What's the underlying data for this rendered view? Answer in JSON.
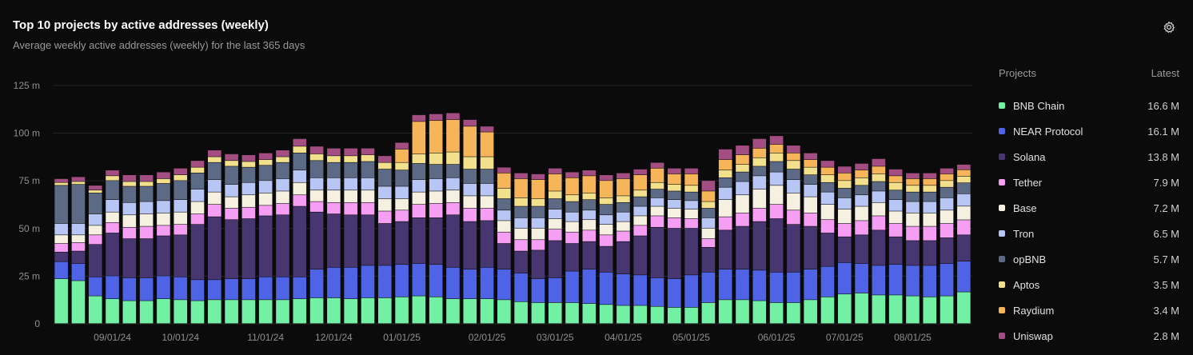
{
  "header": {
    "title": "Top 10 projects by active addresses (weekly)",
    "subtitle": "Average weekly active addresses (weekly) for the last 365 days"
  },
  "legend": {
    "heading_projects": "Projects",
    "heading_latest": "Latest"
  },
  "icons": {
    "settings": "gear-icon"
  },
  "chart_data": {
    "type": "bar",
    "stacked": true,
    "ylabel": "",
    "xlabel": "",
    "ylim": [
      0,
      130
    ],
    "y_ticks": [
      0,
      25,
      50,
      75,
      100,
      125
    ],
    "y_tick_labels": [
      "0",
      "25 m",
      "50 m",
      "75 m",
      "100 m",
      "125 m"
    ],
    "x_tick_labels": [
      {
        "label": "09/01/24",
        "index": 3
      },
      {
        "label": "10/01/24",
        "index": 7
      },
      {
        "label": "11/01/24",
        "index": 12
      },
      {
        "label": "12/01/24",
        "index": 16
      },
      {
        "label": "01/01/25",
        "index": 20
      },
      {
        "label": "02/01/25",
        "index": 25
      },
      {
        "label": "03/01/25",
        "index": 29
      },
      {
        "label": "04/01/25",
        "index": 33
      },
      {
        "label": "05/01/25",
        "index": 37
      },
      {
        "label": "06/01/25",
        "index": 42
      },
      {
        "label": "07/01/25",
        "index": 46
      },
      {
        "label": "08/01/25",
        "index": 50
      }
    ],
    "grid": true,
    "legend_position": "right",
    "series": [
      {
        "name": "BNB Chain",
        "latest": "16.6 M",
        "color": "#72f0a4",
        "values": [
          23.5,
          22.5,
          14.5,
          13,
          12,
          12,
          13,
          12.5,
          12,
          12.5,
          12.5,
          12.5,
          12.5,
          12.5,
          13,
          13.5,
          13.5,
          13,
          13.5,
          13.5,
          14,
          14.5,
          14,
          13,
          13,
          13,
          12.5,
          11.5,
          11,
          11,
          11,
          10.5,
          10,
          9.5,
          9.5,
          9,
          8.5,
          8.5,
          11,
          12.5,
          12.5,
          12,
          11,
          11,
          12.5,
          14,
          15.5,
          16,
          15,
          15,
          14.5,
          14,
          14.5,
          16.6
        ]
      },
      {
        "name": "NEAR Protocol",
        "latest": "16.1 M",
        "color": "#4f63e6",
        "values": [
          9,
          9,
          10,
          12,
          12,
          12,
          12,
          12,
          11,
          10.5,
          11,
          11,
          12,
          12,
          11.5,
          15,
          16,
          16.5,
          17,
          17,
          17,
          17,
          17,
          16.5,
          15.5,
          16.5,
          16,
          15,
          12.5,
          13,
          16.5,
          18,
          17,
          16.5,
          16,
          15,
          15,
          17,
          16,
          16,
          16,
          16,
          16,
          16,
          16,
          16,
          16.5,
          15.5,
          15.5,
          16,
          16,
          16.5,
          17,
          16.1
        ]
      },
      {
        "name": "Solana",
        "latest": "13.8 M",
        "color": "#47366f",
        "values": [
          5,
          6.5,
          17,
          22.5,
          20.5,
          20.5,
          21,
          22,
          29,
          33,
          31,
          31.5,
          32,
          32.5,
          37,
          30,
          28,
          27.5,
          26.5,
          22,
          22.5,
          24,
          24.5,
          27.5,
          25,
          24.5,
          13.5,
          11.5,
          15,
          19.5,
          14.5,
          14.5,
          13.5,
          17,
          20.5,
          26.5,
          26.5,
          24.5,
          13,
          20.5,
          22.5,
          25.5,
          28,
          25,
          22.5,
          17.5,
          13.5,
          15,
          18.5,
          14.5,
          13,
          13,
          13.5,
          13.8
        ]
      },
      {
        "name": "Tether",
        "latest": "7.9 M",
        "color": "#f59ef3",
        "values": [
          4.5,
          4.5,
          5,
          5.5,
          6,
          6.5,
          5.5,
          5.5,
          5.5,
          6.5,
          6,
          6,
          5.5,
          6,
          6,
          5.5,
          6,
          6.5,
          6.5,
          6.5,
          6,
          7,
          7.5,
          6.5,
          7,
          6.5,
          6,
          6,
          5.5,
          6,
          6,
          6,
          6,
          5.5,
          5.5,
          6,
          5.5,
          5,
          4.5,
          7,
          7,
          7,
          7.5,
          7.5,
          7,
          7,
          7,
          7.5,
          7.5,
          7,
          7.5,
          7.5,
          7.5,
          7.9
        ]
      },
      {
        "name": "Base",
        "latest": "7.2 M",
        "color": "#f5f0df",
        "values": [
          4.5,
          4,
          5,
          5.5,
          6.5,
          6.5,
          6.5,
          6.5,
          6.5,
          6.5,
          6,
          6.5,
          6.5,
          6.5,
          6.5,
          6,
          6.5,
          6.5,
          6.5,
          6.5,
          6,
          6.5,
          6.5,
          6.5,
          6.5,
          6.5,
          6,
          6,
          6,
          5.5,
          5.5,
          5.5,
          5.5,
          5,
          5,
          5,
          5,
          5,
          5.5,
          9,
          9.5,
          10,
          10,
          9,
          8.5,
          8,
          7.5,
          7.5,
          7,
          6.5,
          7,
          7,
          7,
          7.2
        ]
      },
      {
        "name": "Tron",
        "latest": "6.5 M",
        "color": "#b8c6f5",
        "values": [
          6,
          6,
          6,
          6.5,
          6.5,
          6.5,
          6.5,
          6.5,
          6.5,
          6.5,
          6.5,
          6.5,
          6.5,
          6.5,
          6.5,
          6.5,
          6.5,
          6.5,
          6.5,
          6.5,
          6.5,
          6.5,
          6.5,
          6.5,
          6.5,
          6.5,
          5.5,
          5.5,
          5.5,
          5,
          5,
          5,
          5,
          5,
          5,
          4.5,
          4.5,
          4.5,
          5.5,
          6.5,
          7,
          7,
          7,
          7,
          6.5,
          6.5,
          6,
          6,
          6,
          6,
          6,
          6,
          6.5,
          6.5
        ]
      },
      {
        "name": "opBNB",
        "latest": "5.7 M",
        "color": "#5d6a86",
        "values": [
          20,
          20.5,
          11,
          10,
          8.5,
          8,
          9,
          10,
          8.5,
          9,
          9.5,
          8,
          8,
          8.5,
          9,
          9,
          8,
          8,
          8.5,
          9,
          8.5,
          8.5,
          7.5,
          7,
          7.5,
          7.5,
          6,
          6,
          6,
          5.5,
          5.5,
          5.5,
          5.5,
          5,
          5,
          4.5,
          4.5,
          4.5,
          5,
          5,
          5,
          5,
          5.5,
          5.5,
          5,
          5,
          5,
          5,
          5,
          5,
          5,
          5,
          5.5,
          5.7
        ]
      },
      {
        "name": "Aptos",
        "latest": "3.5 M",
        "color": "#f2e08c",
        "values": [
          1.5,
          1.5,
          1.5,
          2.5,
          2.5,
          2.5,
          2.5,
          3,
          3,
          3,
          3,
          3,
          3,
          3,
          3.5,
          3.5,
          3.5,
          3.5,
          3.5,
          3.5,
          4,
          5,
          6,
          6.5,
          6.5,
          6.5,
          5.5,
          4.5,
          4,
          4,
          3.5,
          3.5,
          3.5,
          3.5,
          3.5,
          3.5,
          3.5,
          3.5,
          3.5,
          4,
          4,
          4.5,
          4.5,
          4.5,
          4,
          4,
          4,
          4,
          4,
          4,
          3.5,
          3.5,
          3.5,
          3.5
        ]
      },
      {
        "name": "Raydium",
        "latest": "3.4 M",
        "color": "#f7b55a",
        "values": [
          0,
          0,
          0,
          0,
          0,
          0,
          0,
          0,
          0,
          0,
          0,
          0,
          0,
          0,
          0,
          0,
          0,
          0,
          0,
          0,
          7,
          17,
          17,
          17,
          16,
          13,
          8,
          10,
          10,
          9,
          9,
          9,
          9,
          9,
          8,
          7.5,
          5.5,
          6,
          5.5,
          5.5,
          5,
          5,
          4.5,
          4,
          4,
          4,
          4,
          4,
          4,
          3.5,
          3.5,
          3.5,
          3.5,
          3.4
        ]
      },
      {
        "name": "Uniswap",
        "latest": "2.8 M",
        "color": "#a34d82",
        "values": [
          2,
          2.5,
          2.5,
          3,
          3.5,
          3.5,
          3.5,
          3.5,
          3.5,
          3.5,
          3.5,
          3.5,
          3.5,
          3.5,
          4,
          4,
          4,
          4,
          3.5,
          3.5,
          3.5,
          3.5,
          3.5,
          3.5,
          3.5,
          3,
          3,
          3,
          3,
          3,
          3,
          3,
          3,
          3,
          3,
          3,
          3,
          3,
          5.5,
          5.5,
          5,
          5,
          4.5,
          4,
          3.5,
          3.5,
          3.5,
          3.5,
          4,
          3.5,
          3,
          3,
          3,
          2.8
        ]
      }
    ]
  }
}
